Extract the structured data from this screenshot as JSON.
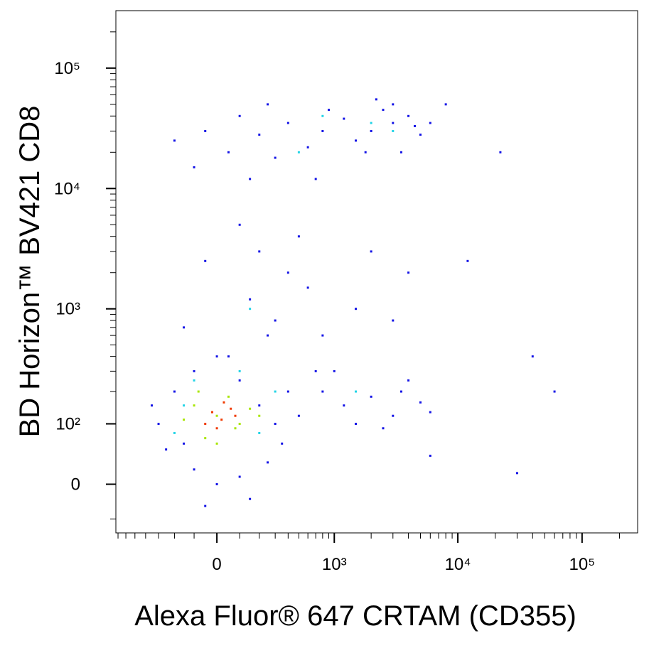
{
  "chart_data": {
    "type": "scatter",
    "xlabel": "Alexa Fluor® 647 CRTAM (CD355)",
    "ylabel": "BD Horizon™ BV421 CD8",
    "xscale": "biexponential",
    "yscale": "biexponential",
    "xlim": [
      -730,
      280000
    ],
    "ylim": [
      -75,
      300000
    ],
    "xticks": [
      0,
      {
        "value": 1000,
        "label": "10³"
      },
      {
        "value": 10000,
        "label": "10⁴"
      },
      {
        "value": 100000,
        "label": "10⁵"
      }
    ],
    "yticks": [
      0,
      {
        "value": 100,
        "label": "10²"
      },
      {
        "value": 1000,
        "label": "10³"
      },
      {
        "value": 10000,
        "label": "10⁴"
      },
      {
        "value": 100000,
        "label": "10⁵"
      }
    ],
    "xminorticks": [
      -700,
      -600,
      -500,
      -400,
      -300,
      -200,
      -100,
      100,
      200,
      300,
      400,
      500,
      600,
      700,
      800,
      900,
      2000,
      3000,
      4000,
      5000,
      6000,
      7000,
      8000,
      9000,
      20000,
      30000,
      40000,
      50000,
      60000,
      70000,
      80000,
      90000,
      200000
    ],
    "yminorticks": [
      -50,
      200,
      300,
      400,
      500,
      600,
      700,
      800,
      900,
      2000,
      3000,
      4000,
      5000,
      6000,
      7000,
      8000,
      9000,
      20000,
      30000,
      40000,
      50000,
      60000,
      70000,
      80000,
      90000,
      200000
    ],
    "series": [
      {
        "color": "#1414e6",
        "x": [
          2000,
          3000,
          1500,
          4000,
          1200,
          2500,
          5000,
          800,
          600,
          400,
          300,
          200,
          100,
          50,
          -50,
          -100,
          150,
          700,
          3500,
          6000,
          8000,
          2200,
          1800,
          900,
          3000,
          4500,
          -200,
          250,
          100,
          200,
          400,
          600,
          300,
          150,
          -50,
          800,
          1500,
          2000,
          500,
          250,
          50,
          1000,
          3000,
          4000,
          -150,
          800,
          1200,
          2000,
          3000,
          4000,
          5000,
          1500,
          2500,
          700,
          3500,
          6000,
          -300,
          -200,
          -150,
          -100,
          0,
          100,
          200,
          300,
          350,
          250,
          100,
          0,
          -100,
          -250,
          150,
          -50,
          400,
          500,
          -350,
          22000,
          40000,
          60000,
          12000,
          6000,
          30000
        ],
        "values": [
          30000,
          35000,
          25000,
          40000,
          38000,
          45000,
          28000,
          30000,
          22000,
          35000,
          18000,
          28000,
          40000,
          20000,
          30000,
          15000,
          12000,
          12000,
          20000,
          35000,
          50000,
          55000,
          20000,
          45000,
          50000,
          33000,
          25000,
          50000,
          5000,
          3000,
          2000,
          1500,
          800,
          1200,
          2500,
          600,
          1000,
          3000,
          4000,
          600,
          400,
          300,
          800,
          2000,
          700,
          200,
          150,
          180,
          120,
          250,
          160,
          100,
          90,
          300,
          200,
          130,
          100,
          200,
          60,
          300,
          400,
          250,
          150,
          100,
          60,
          30,
          10,
          0,
          20,
          50,
          -20,
          -30,
          200,
          120,
          150,
          20000,
          400,
          200,
          2500,
          40,
          15
        ]
      },
      {
        "color": "#22d4e6",
        "x": [
          2000,
          3000,
          500,
          -100,
          100,
          200,
          -150,
          300,
          1500,
          800,
          150,
          -200
        ],
        "values": [
          35000,
          30000,
          20000,
          250,
          300,
          80,
          150,
          200,
          200,
          40000,
          1000,
          80
        ]
      },
      {
        "color": "#a8e600",
        "x": [
          -100,
          0,
          100,
          50,
          -50,
          150,
          -150,
          0,
          200,
          -80,
          80
        ],
        "values": [
          150,
          120,
          100,
          180,
          70,
          140,
          110,
          60,
          120,
          200,
          90
        ]
      },
      {
        "color": "#f03a00",
        "x": [
          -20,
          20,
          60,
          -50,
          30,
          0,
          80
        ],
        "values": [
          130,
          110,
          140,
          100,
          160,
          90,
          120
        ]
      }
    ]
  }
}
